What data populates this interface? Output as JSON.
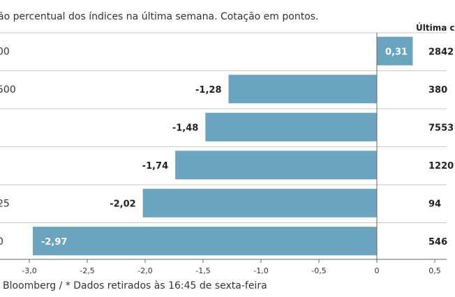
{
  "header": {
    "subtitle": "ão percentual dos índices na última semana. Cotação em pontos.",
    "last_column": "Última c"
  },
  "footer": {
    "source": "Bloomberg / * Dados retirados às 16:45 de sexta-feira"
  },
  "colors": {
    "bar": "#6aa4bf",
    "divider": "#c8c8c8",
    "axis": "#666666"
  },
  "chart_data": {
    "type": "bar",
    "orientation": "horizontal",
    "categories": [
      "00",
      "500",
      "",
      "",
      "25",
      "0"
    ],
    "values": [
      0.31,
      -1.28,
      -1.48,
      -1.74,
      -2.02,
      -2.97
    ],
    "value_labels": [
      "0,31",
      "-1,28",
      "-1,48",
      "-1,74",
      "-2,02",
      "-2,97"
    ],
    "last_values": [
      "2842",
      "380",
      "7553",
      "1220",
      "94",
      "546"
    ],
    "xlim": [
      -3.2,
      0.5
    ],
    "xticks": [
      {
        "value": -3.0,
        "label": "-3,0"
      },
      {
        "value": -2.5,
        "label": "-2,5"
      },
      {
        "value": -2.0,
        "label": "-2,0"
      },
      {
        "value": -1.5,
        "label": "-1,5"
      },
      {
        "value": -1.0,
        "label": "-1,0"
      },
      {
        "value": -0.5,
        "label": "-0,5"
      },
      {
        "value": 0,
        "label": "0"
      },
      {
        "value": 0.5,
        "label": "0,5"
      }
    ],
    "grid": false
  }
}
